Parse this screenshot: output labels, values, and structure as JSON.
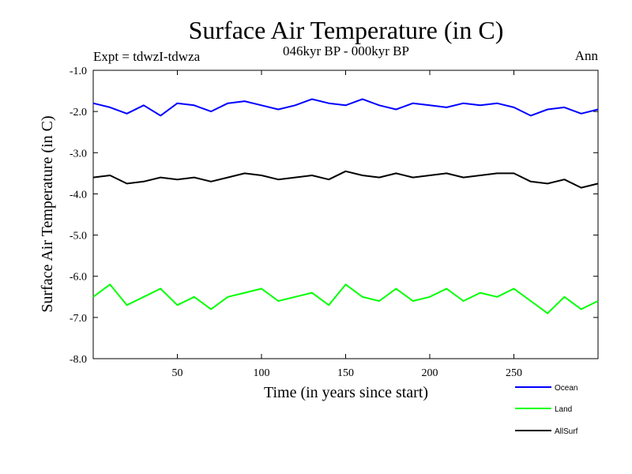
{
  "chart_data": {
    "type": "line",
    "title": "Surface Air Temperature (in C)",
    "subtitle": "046kyr BP - 000kyr BP",
    "left_label": "Expt = tdwzI-tdwza",
    "right_label": "Ann",
    "xlabel": "Time (in years since start)",
    "ylabel": "Surface Air Temperature (in C)",
    "xlim": [
      0,
      300
    ],
    "ylim": [
      -8.0,
      -1.0
    ],
    "x_ticks": [
      50,
      100,
      150,
      200,
      250
    ],
    "y_ticks": [
      -1.0,
      -2.0,
      -3.0,
      -4.0,
      -5.0,
      -6.0,
      -7.0,
      -8.0
    ],
    "x_tick_labels": [
      "50",
      "100",
      "150",
      "200",
      "250"
    ],
    "y_tick_labels": [
      "-1.0",
      "-2.0",
      "-3.0",
      "-4.0",
      "-5.0",
      "-6.0",
      "-7.0",
      "-8.0"
    ],
    "grid": false,
    "legend_position": "bottom-right",
    "series": [
      {
        "name": "Ocean",
        "color": "#0000ff",
        "x": [
          0,
          10,
          20,
          30,
          40,
          50,
          60,
          70,
          80,
          90,
          100,
          110,
          120,
          130,
          140,
          150,
          160,
          170,
          180,
          190,
          200,
          210,
          220,
          230,
          240,
          250,
          260,
          270,
          280,
          290,
          300
        ],
        "y": [
          -1.8,
          -1.9,
          -2.05,
          -1.85,
          -2.1,
          -1.8,
          -1.85,
          -2.0,
          -1.8,
          -1.75,
          -1.85,
          -1.95,
          -1.85,
          -1.7,
          -1.8,
          -1.85,
          -1.7,
          -1.85,
          -1.95,
          -1.8,
          -1.85,
          -1.9,
          -1.8,
          -1.85,
          -1.8,
          -1.9,
          -2.1,
          -1.95,
          -1.9,
          -2.05,
          -1.95
        ]
      },
      {
        "name": "Land",
        "color": "#00ff00",
        "x": [
          0,
          10,
          20,
          30,
          40,
          50,
          60,
          70,
          80,
          90,
          100,
          110,
          120,
          130,
          140,
          150,
          160,
          170,
          180,
          190,
          200,
          210,
          220,
          230,
          240,
          250,
          260,
          270,
          280,
          290,
          300
        ],
        "y": [
          -6.5,
          -6.2,
          -6.7,
          -6.5,
          -6.3,
          -6.7,
          -6.5,
          -6.8,
          -6.5,
          -6.4,
          -6.3,
          -6.6,
          -6.5,
          -6.4,
          -6.7,
          -6.2,
          -6.5,
          -6.6,
          -6.3,
          -6.6,
          -6.5,
          -6.3,
          -6.6,
          -6.4,
          -6.5,
          -6.3,
          -6.6,
          -6.9,
          -6.5,
          -6.8,
          -6.6
        ]
      },
      {
        "name": "AllSurf",
        "color": "#000000",
        "x": [
          0,
          10,
          20,
          30,
          40,
          50,
          60,
          70,
          80,
          90,
          100,
          110,
          120,
          130,
          140,
          150,
          160,
          170,
          180,
          190,
          200,
          210,
          220,
          230,
          240,
          250,
          260,
          270,
          280,
          290,
          300
        ],
        "y": [
          -3.6,
          -3.55,
          -3.75,
          -3.7,
          -3.6,
          -3.65,
          -3.6,
          -3.7,
          -3.6,
          -3.5,
          -3.55,
          -3.65,
          -3.6,
          -3.55,
          -3.65,
          -3.45,
          -3.55,
          -3.6,
          -3.5,
          -3.6,
          -3.55,
          -3.5,
          -3.6,
          -3.55,
          -3.5,
          -3.5,
          -3.7,
          -3.75,
          -3.65,
          -3.85,
          -3.75
        ]
      }
    ]
  }
}
